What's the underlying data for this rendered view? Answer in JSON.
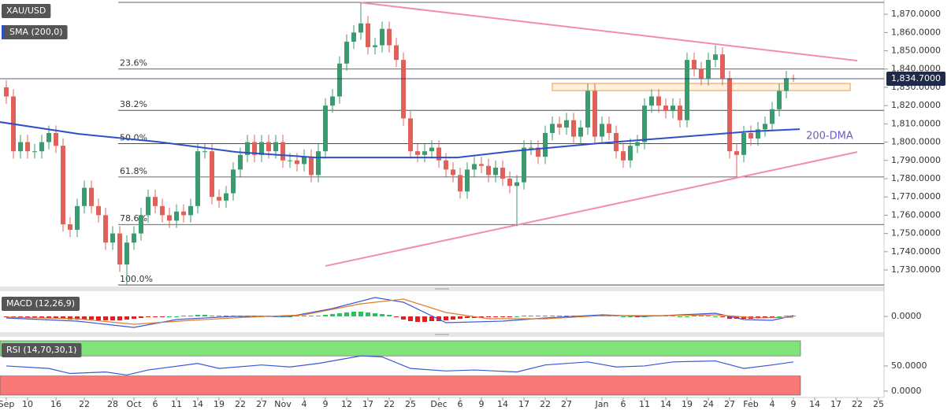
{
  "chart_data": [
    {
      "type": "candlestick",
      "title": "XAU/USD",
      "up_color": "#3c9a6f",
      "down_color": "#e0605a",
      "ylim": [
        1721.4,
        1877.8
      ],
      "yticks": [
        {
          "value": 1730,
          "label": "1,730.0000"
        },
        {
          "value": 1740,
          "label": "1,740.0000"
        },
        {
          "value": 1750,
          "label": "1,750.0000"
        },
        {
          "value": 1760,
          "label": "1,760.0000"
        },
        {
          "value": 1770,
          "label": "1,770.0000"
        },
        {
          "value": 1780,
          "label": "1,780.0000"
        },
        {
          "value": 1790,
          "label": "1,790.0000"
        },
        {
          "value": 1800,
          "label": "1,800.0000"
        },
        {
          "value": 1810,
          "label": "1,810.0000"
        },
        {
          "value": 1820,
          "label": "1,820.0000"
        },
        {
          "value": 1830,
          "label": "1,830.0000"
        },
        {
          "value": 1840,
          "label": "1,840.0000"
        },
        {
          "value": 1850,
          "label": "1,850.0000"
        },
        {
          "value": 1860,
          "label": "1,860.0000"
        },
        {
          "value": 1870,
          "label": "1,870.0000"
        }
      ],
      "xticks": [
        {
          "value": 0,
          "label": "Sep"
        },
        {
          "value": 3,
          "label": "10"
        },
        {
          "value": 7,
          "label": "16"
        },
        {
          "value": 11,
          "label": "22"
        },
        {
          "value": 15,
          "label": "28"
        },
        {
          "value": 18,
          "label": "Oct"
        },
        {
          "value": 21,
          "label": "6"
        },
        {
          "value": 24,
          "label": "11"
        },
        {
          "value": 27,
          "label": "14"
        },
        {
          "value": 30,
          "label": "19"
        },
        {
          "value": 33,
          "label": "22"
        },
        {
          "value": 36,
          "label": "27"
        },
        {
          "value": 39,
          "label": "Nov"
        },
        {
          "value": 42,
          "label": "4"
        },
        {
          "value": 45,
          "label": "9"
        },
        {
          "value": 48,
          "label": "12"
        },
        {
          "value": 51,
          "label": "17"
        },
        {
          "value": 54,
          "label": "22"
        },
        {
          "value": 57,
          "label": "25"
        },
        {
          "value": 61,
          "label": "Dec"
        },
        {
          "value": 64,
          "label": "6"
        },
        {
          "value": 67,
          "label": "9"
        },
        {
          "value": 70,
          "label": "14"
        },
        {
          "value": 73,
          "label": "17"
        },
        {
          "value": 76,
          "label": "22"
        },
        {
          "value": 79,
          "label": "27"
        },
        {
          "value": 84,
          "label": "Jan"
        },
        {
          "value": 87,
          "label": "6"
        },
        {
          "value": 90,
          "label": "11"
        },
        {
          "value": 93,
          "label": "14"
        },
        {
          "value": 96,
          "label": "19"
        },
        {
          "value": 99,
          "label": "24"
        },
        {
          "value": 102,
          "label": "27"
        },
        {
          "value": 105,
          "label": "Feb"
        },
        {
          "value": 108,
          "label": "4"
        },
        {
          "value": 111,
          "label": "9"
        },
        {
          "value": 114,
          "label": "14"
        },
        {
          "value": 117,
          "label": "17"
        },
        {
          "value": 120,
          "label": "22"
        },
        {
          "value": 123,
          "label": "25"
        }
      ],
      "ohlc": {
        "open": [
          1830,
          1825,
          1795,
          1800,
          1795,
          1795,
          1800,
          1805,
          1798,
          1755,
          1752,
          1765,
          1775,
          1765,
          1760,
          1745,
          1750,
          1733,
          1745,
          1750,
          1760,
          1770,
          1765,
          1760,
          1757,
          1762,
          1760,
          1765,
          1795,
          1795,
          1770,
          1768,
          1772,
          1785,
          1793,
          1800,
          1793,
          1800,
          1795,
          1800,
          1790,
          1790,
          1788,
          1792,
          1782,
          1795,
          1820,
          1825,
          1843,
          1855,
          1860,
          1865,
          1852,
          1853,
          1862,
          1853,
          1845,
          1813,
          1795,
          1793,
          1795,
          1797,
          1790,
          1785,
          1782,
          1773,
          1785,
          1788,
          1787,
          1782,
          1786,
          1780,
          1776,
          1778,
          1797,
          1797,
          1792,
          1805,
          1810,
          1808,
          1812,
          1803,
          1808,
          1828,
          1803,
          1810,
          1805,
          1795,
          1790,
          1798,
          1800,
          1820,
          1825,
          1820,
          1817,
          1820,
          1812,
          1845,
          1840,
          1835,
          1845,
          1848,
          1835,
          1795,
          1793,
          1805,
          1802,
          1807,
          1810,
          1818,
          1828,
          1835
        ],
        "high": [
          1834,
          1829,
          1804,
          1804,
          1799,
          1804,
          1809,
          1809,
          1802,
          1759,
          1769,
          1779,
          1779,
          1769,
          1764,
          1754,
          1754,
          1749,
          1754,
          1764,
          1774,
          1774,
          1769,
          1764,
          1766,
          1766,
          1769,
          1799,
          1799,
          1799,
          1774,
          1776,
          1789,
          1797,
          1804,
          1804,
          1804,
          1804,
          1804,
          1804,
          1794,
          1794,
          1796,
          1796,
          1799,
          1824,
          1829,
          1847,
          1859,
          1864,
          1876.5,
          1869,
          1857,
          1866,
          1866,
          1857,
          1849,
          1817,
          1799,
          1799,
          1801,
          1801,
          1794,
          1789,
          1786,
          1789,
          1792,
          1792,
          1791,
          1790,
          1790,
          1784,
          1782,
          1801,
          1801,
          1801,
          1809,
          1814,
          1814,
          1816,
          1816,
          1812,
          1832,
          1832,
          1814,
          1814,
          1809,
          1799,
          1802,
          1804,
          1824,
          1829,
          1829,
          1824,
          1824,
          1824,
          1849,
          1849,
          1844,
          1849,
          1853,
          1852,
          1839,
          1799,
          1809,
          1809,
          1811,
          1814,
          1822,
          1832,
          1839,
          1837
        ],
        "low": [
          1821,
          1791,
          1791,
          1791,
          1791,
          1791,
          1796,
          1794,
          1751,
          1748,
          1748,
          1761,
          1761,
          1756,
          1741,
          1741,
          1729,
          1722,
          1741,
          1746,
          1756,
          1761,
          1756,
          1753,
          1753,
          1756,
          1756,
          1761,
          1791,
          1766,
          1764,
          1764,
          1768,
          1781,
          1789,
          1789,
          1789,
          1791,
          1791,
          1786,
          1786,
          1784,
          1784,
          1778,
          1778,
          1791,
          1816,
          1821,
          1839,
          1851,
          1856,
          1848,
          1848,
          1849,
          1849,
          1841,
          1809,
          1791,
          1789,
          1789,
          1791,
          1786,
          1781,
          1778,
          1769,
          1769,
          1781,
          1783,
          1778,
          1778,
          1776,
          1772,
          1754,
          1774,
          1793,
          1788,
          1788,
          1801,
          1804,
          1804,
          1799,
          1799,
          1804,
          1799,
          1799,
          1801,
          1791,
          1786,
          1786,
          1794,
          1796,
          1816,
          1816,
          1813,
          1813,
          1808,
          1808,
          1836,
          1831,
          1831,
          1841,
          1831,
          1791,
          1781,
          1789,
          1798,
          1798,
          1803,
          1806,
          1814,
          1824,
          1833
        ],
        "close": [
          1825,
          1795,
          1800,
          1795,
          1795,
          1800,
          1805,
          1798,
          1755,
          1752,
          1765,
          1775,
          1765,
          1760,
          1745,
          1750,
          1733,
          1745,
          1750,
          1760,
          1770,
          1765,
          1760,
          1757,
          1762,
          1760,
          1765,
          1795,
          1795,
          1770,
          1768,
          1772,
          1785,
          1793,
          1800,
          1793,
          1800,
          1795,
          1800,
          1790,
          1790,
          1788,
          1792,
          1782,
          1795,
          1820,
          1825,
          1843,
          1855,
          1860,
          1865,
          1852,
          1853,
          1862,
          1853,
          1845,
          1813,
          1795,
          1793,
          1795,
          1797,
          1790,
          1785,
          1782,
          1773,
          1785,
          1788,
          1787,
          1782,
          1786,
          1780,
          1776,
          1778,
          1797,
          1797,
          1792,
          1805,
          1810,
          1808,
          1812,
          1803,
          1808,
          1828,
          1803,
          1810,
          1805,
          1795,
          1790,
          1798,
          1800,
          1820,
          1825,
          1820,
          1817,
          1820,
          1812,
          1845,
          1840,
          1835,
          1845,
          1848,
          1835,
          1795,
          1793,
          1805,
          1802,
          1807,
          1810,
          1818,
          1828,
          1835,
          1834.7
        ]
      },
      "sma": {
        "name": "SMA (200,0)",
        "color": "#2e4fc9",
        "annotation": "200-DMA",
        "x": [
          -0.9,
          10.2,
          21.3,
          32.4,
          43.6,
          54.7,
          63.6,
          71.3,
          83.6,
          93.6,
          104.7,
          111.9
        ],
        "values": [
          1811,
          1804.5,
          1800.2,
          1794.6,
          1791.6,
          1791.6,
          1791.6,
          1795,
          1799.4,
          1802.4,
          1805.8,
          1807.1
        ]
      },
      "range_high": 1876.5,
      "fib_levels": [
        {
          "label": "23.6%",
          "value": 1840
        },
        {
          "label": "38.2%",
          "value": 1817.4
        },
        {
          "label": "50.0%",
          "value": 1799.2
        },
        {
          "label": "61.8%",
          "value": 1780.9
        },
        {
          "label": "78.6%",
          "value": 1754.9
        },
        {
          "label": "100.0%",
          "value": 1721.8
        }
      ],
      "trendlines": [
        {
          "color": "#f28cb1",
          "x": [
            49.7,
            120
          ],
          "values": [
            1876.5,
            1844.6
          ]
        },
        {
          "color": "#f28cb1",
          "x": [
            45,
            120
          ],
          "values": [
            1732.2,
            1794.6
          ]
        }
      ],
      "zone": {
        "color": "#f2a65a",
        "x": [
          77,
          119
        ],
        "values": [
          1828.2,
          1832.1
        ]
      },
      "last_price": {
        "value": 1834.7,
        "label": "1,834.7000"
      }
    },
    {
      "type": "macd",
      "title": "MACD (12,26,9)",
      "ylim": [
        -18,
        30
      ],
      "yticks": [
        {
          "value": 0,
          "label": "0.0000"
        }
      ],
      "histogram": [
        -1,
        -1,
        -2,
        -2,
        -2,
        -2,
        -2,
        -2,
        -3,
        -4,
        -4,
        -4,
        -4,
        -5,
        -5,
        -5,
        -5,
        -4,
        -3,
        -2,
        -1,
        -1,
        -1,
        0,
        0,
        1,
        1,
        2,
        2,
        1,
        1,
        1,
        1,
        1,
        1,
        1,
        1,
        1,
        0,
        0,
        0,
        1,
        1,
        1,
        1,
        2,
        3,
        4,
        5,
        6,
        6,
        5,
        4,
        3,
        2,
        -1,
        -4,
        -6,
        -7,
        -7,
        -6,
        -6,
        -5,
        -4,
        -3,
        -2,
        -2,
        -2,
        -1,
        -1,
        -1,
        -1,
        0,
        1,
        1,
        1,
        1,
        1,
        1,
        1,
        1,
        1,
        1,
        2,
        1,
        1,
        1,
        0,
        0,
        -1,
        0,
        1,
        1,
        1,
        1,
        0,
        0,
        1,
        1,
        1,
        0,
        -1,
        -3,
        -3,
        -3,
        -3,
        -2,
        -2,
        -1,
        0,
        1,
        1
      ],
      "macd": {
        "color": "#3a58d6",
        "x": [
          0,
          10,
          18,
          24,
          32,
          40,
          46,
          52,
          56,
          62,
          70,
          76,
          84,
          90,
          100,
          104,
          108,
          111
        ],
        "values": [
          -2,
          -6,
          -14,
          -4,
          0,
          0,
          10,
          24,
          18,
          -8,
          -6,
          -2,
          2,
          0,
          4,
          -4,
          -5,
          1
        ]
      },
      "signal": {
        "color": "#e07b2a",
        "x": [
          0,
          10,
          18,
          26,
          34,
          42,
          50,
          56,
          62,
          68,
          76,
          84,
          92,
          100,
          106,
          111
        ],
        "values": [
          -1,
          -3,
          -10,
          -5,
          -1,
          2,
          16,
          22,
          5,
          -3,
          -3,
          1,
          1,
          2,
          -2,
          -1
        ]
      }
    },
    {
      "type": "rsi",
      "title": "RSI (14,70,30,1)",
      "ylim": [
        -8,
        100
      ],
      "yticks": [
        {
          "value": 0,
          "label": "0.0000"
        },
        {
          "value": 50,
          "label": "50.0000"
        }
      ],
      "bands": [
        {
          "range": [
            70,
            100
          ],
          "color": "#7fe57a"
        },
        {
          "range": [
            -8,
            30
          ],
          "color": "#f87878"
        }
      ],
      "line": {
        "color": "#3a58d6",
        "x": [
          0,
          6,
          9,
          14,
          17,
          20,
          27,
          30,
          36,
          40,
          44,
          48,
          50,
          53,
          57,
          62,
          66,
          72,
          76,
          82,
          86,
          90,
          94,
          100,
          104,
          108,
          111
        ],
        "values": [
          50,
          45,
          35,
          38,
          32,
          42,
          55,
          45,
          52,
          48,
          55,
          65,
          70,
          68,
          45,
          40,
          42,
          38,
          52,
          58,
          48,
          50,
          58,
          60,
          45,
          52,
          58
        ]
      }
    }
  ]
}
